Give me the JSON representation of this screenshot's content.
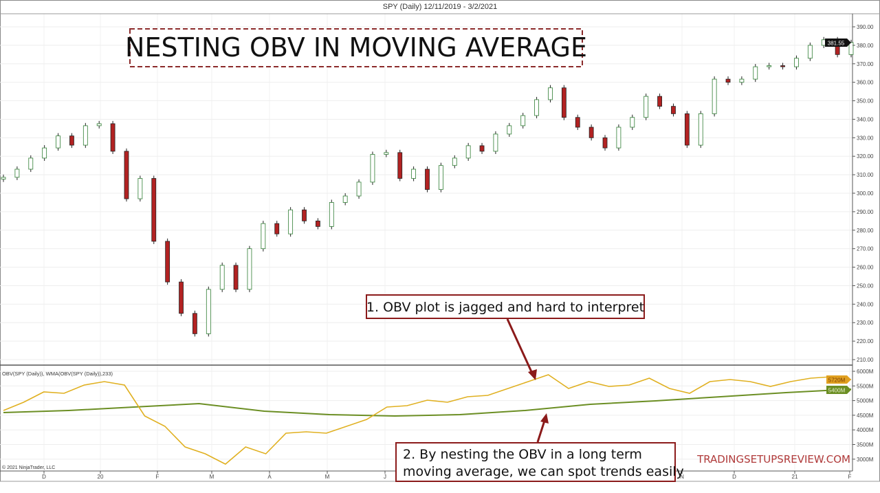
{
  "header": {
    "title": "SPY (Daily)  12/11/2019 - 3/2/2021"
  },
  "overlay_title": "NESTING OBV IN MOVING AVERAGE",
  "annotations": [
    {
      "lines": [
        "1. OBV plot is jagged and hard to interpret"
      ]
    },
    {
      "lines": [
        "2. By nesting the OBV in a long term",
        "moving average, we can spot trends easily"
      ]
    }
  ],
  "watermark": "TRADINGSETUPSREVIEW.COM",
  "copyright": "© 2021 NinjaTrader, LLC",
  "colors": {
    "up": "#2e7d32",
    "down": "#b22222",
    "obv": "#e0b020",
    "wma": "#6b8e23",
    "annotation": "#8b1a1a"
  },
  "chart_data": [
    {
      "type": "candlestick",
      "title": "SPY (Daily)  12/11/2019 - 3/2/2021",
      "ylim": [
        210,
        390
      ],
      "yticks": [
        "390.00",
        "380.00",
        "370.00",
        "360.00",
        "350.00",
        "340.00",
        "330.00",
        "320.00",
        "310.00",
        "300.00",
        "290.00",
        "280.00",
        "270.00",
        "260.00",
        "250.00",
        "240.00",
        "230.00",
        "220.00",
        "210.00"
      ],
      "last_price_label": "381.55",
      "xticks": [
        "D",
        "20",
        "F",
        "M",
        "A",
        "M",
        "J",
        "N",
        "D",
        "21",
        "F"
      ],
      "closes": [
        308.6,
        313,
        319,
        324.5,
        331,
        326,
        336.5,
        337.6,
        322.7,
        297,
        308,
        274,
        252,
        235,
        224,
        248,
        261,
        248,
        270,
        283.6,
        278,
        291,
        285,
        282,
        295,
        298.5,
        306,
        321,
        322,
        308,
        313,
        302,
        315,
        319,
        325.7,
        322.7,
        332,
        336.5,
        342,
        350.6,
        357,
        341,
        335.7,
        330,
        324.5,
        335.7,
        341,
        352.4,
        347,
        343,
        326,
        343,
        361.7,
        360,
        361.7,
        368.4,
        369,
        368.4,
        373,
        380,
        383,
        375,
        381.5
      ]
    },
    {
      "type": "line",
      "legend": "OBV(SPY (Daily)), WMA(OBV(SPY (Daily)),233)",
      "ylim": [
        2800,
        6200
      ],
      "yticks": [
        "6000M",
        "5500M",
        "5000M",
        "4500M",
        "4000M",
        "3500M",
        "3000M"
      ],
      "series": [
        {
          "name": "OBV(SPY (Daily))",
          "last_label": "5720M",
          "values": [
            4662,
            4944,
            5296,
            5249,
            5531,
            5648,
            5531,
            4474,
            4122,
            3418,
            3183,
            2831,
            3418,
            3183,
            3887,
            3934,
            3887,
            4122,
            4357,
            4779,
            4826,
            5014,
            4944,
            5131,
            5178,
            5413,
            5648,
            5883,
            5413,
            5648,
            5484,
            5531,
            5765,
            5413,
            5249,
            5648,
            5718,
            5648,
            5484,
            5648,
            5765,
            5812,
            5718
          ]
        },
        {
          "name": "WMA(OBV(SPY (Daily)),233)",
          "last_label": "5400M",
          "values": [
            4592,
            4662,
            4779,
            4897,
            4639,
            4521,
            4474,
            4521,
            4662,
            4873,
            4990,
            5131,
            5272,
            5390
          ]
        }
      ]
    }
  ]
}
